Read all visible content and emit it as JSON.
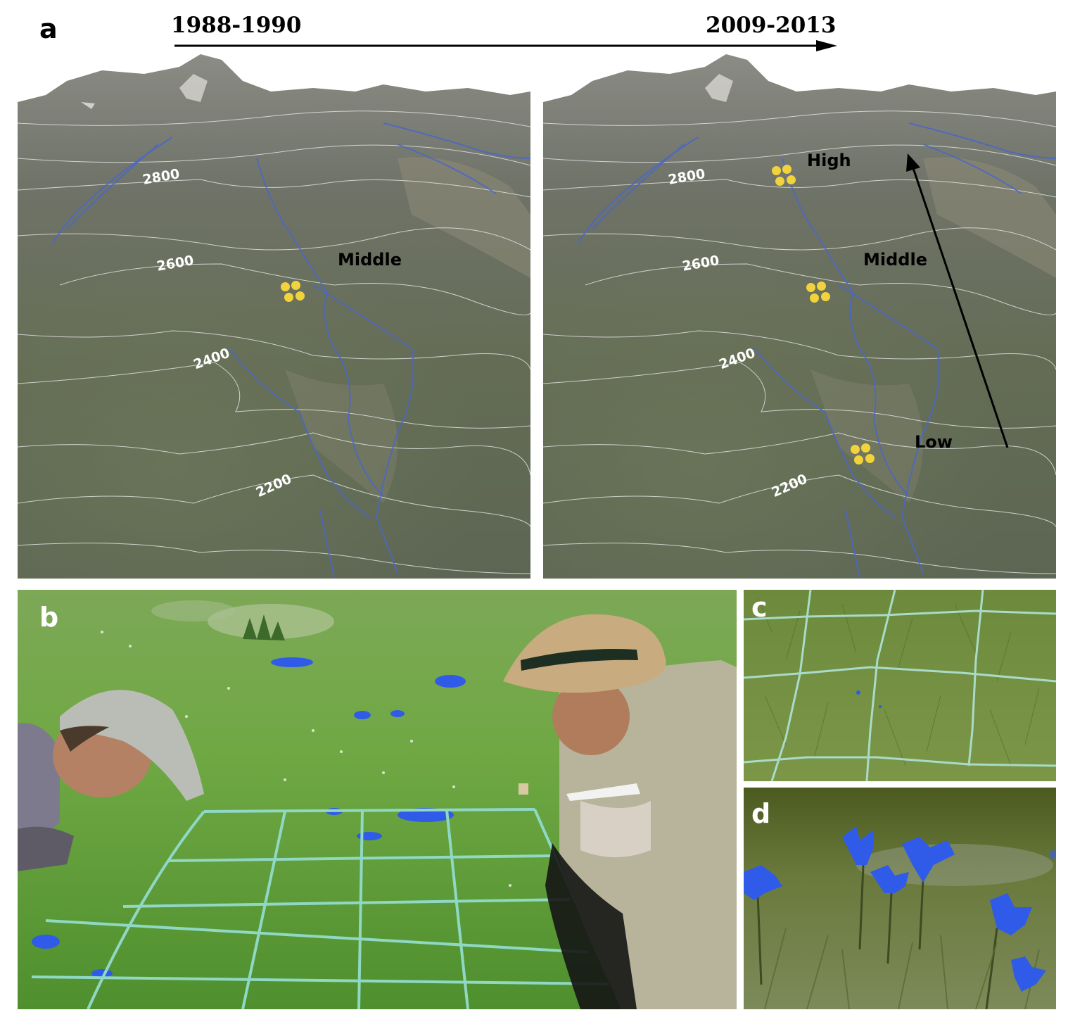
{
  "panel_letters": {
    "a": "a",
    "b": "b",
    "c": "c",
    "d": "d"
  },
  "timeline": {
    "start": "1988-1990",
    "end": "2009-2013"
  },
  "panel_a_left": {
    "contours": [
      "2800",
      "2600",
      "2400",
      "2200"
    ],
    "sites": {
      "middle": "Middle"
    }
  },
  "panel_a_right": {
    "contours": [
      "2800",
      "2600",
      "2400",
      "2200"
    ],
    "sites": {
      "high": "High",
      "middle": "Middle",
      "low": "Low"
    }
  },
  "colors": {
    "site_dot": "#f2d33c",
    "streams": "#4a67c9",
    "grid_rope": "#8fd8c4",
    "gentian": "#2f5be8"
  }
}
